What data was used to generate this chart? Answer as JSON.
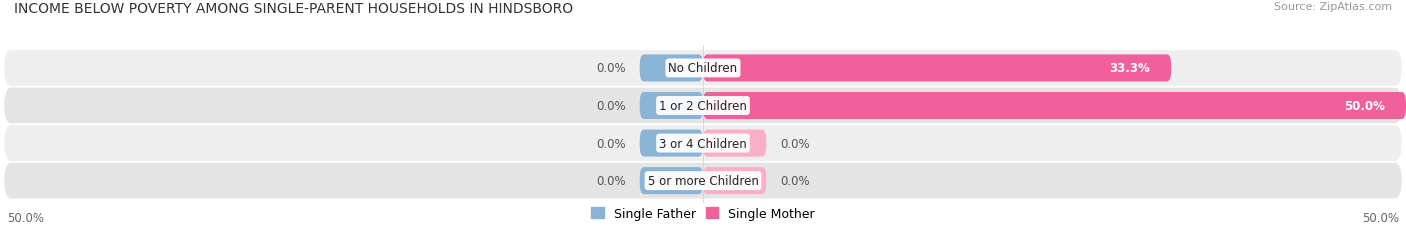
{
  "title": "INCOME BELOW POVERTY AMONG SINGLE-PARENT HOUSEHOLDS IN HINDSBORO",
  "source": "Source: ZipAtlas.com",
  "categories": [
    "No Children",
    "1 or 2 Children",
    "3 or 4 Children",
    "5 or more Children"
  ],
  "single_father": [
    0.0,
    0.0,
    0.0,
    0.0
  ],
  "single_mother": [
    33.3,
    50.0,
    0.0,
    0.0
  ],
  "xlim": [
    -50,
    50
  ],
  "father_color": "#8ab4d5",
  "mother_color_full": "#f0609a",
  "mother_color_light": "#f9afc8",
  "bar_bg_light": "#eeeeee",
  "bar_bg_dark": "#e4e4e4",
  "title_fontsize": 10,
  "source_fontsize": 8,
  "label_fontsize": 8.5,
  "tick_fontsize": 8.5,
  "legend_fontsize": 9
}
